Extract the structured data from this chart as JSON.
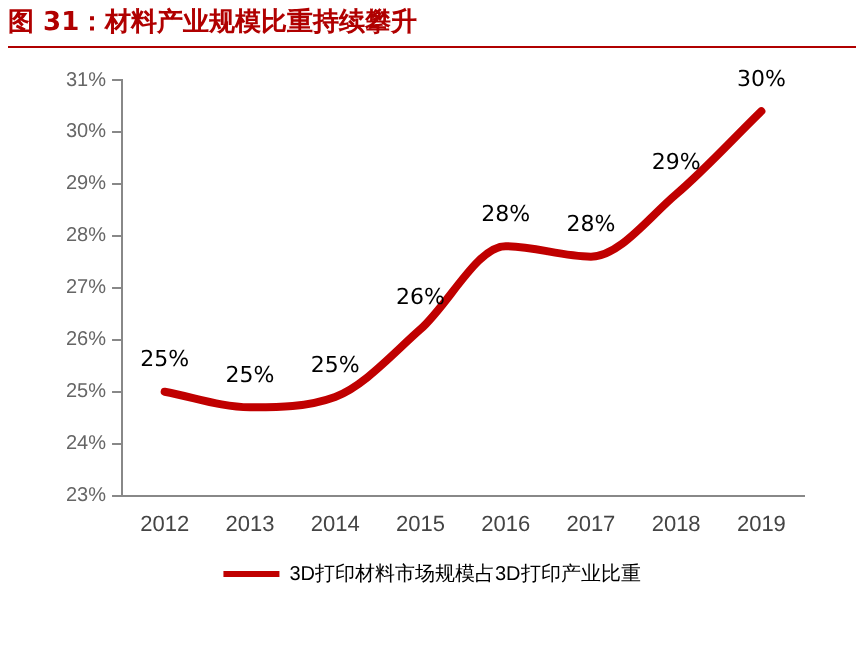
{
  "chart_data": {
    "type": "line",
    "title": "图 31：材料产业规模比重持续攀升",
    "categories": [
      "2012",
      "2013",
      "2014",
      "2015",
      "2016",
      "2017",
      "2018",
      "2019"
    ],
    "series": [
      {
        "name": "3D打印材料市场规模占3D打印产业比重",
        "color": "#c00000",
        "values": [
          25.0,
          24.7,
          24.9,
          26.2,
          27.8,
          27.6,
          28.8,
          30.4
        ],
        "value_labels": [
          "25%",
          "25%",
          "25%",
          "26%",
          "28%",
          "28%",
          "29%",
          "30%"
        ]
      }
    ],
    "ylim": [
      23,
      31
    ],
    "yticks": [
      {
        "value": 23,
        "label": "23%"
      },
      {
        "value": 24,
        "label": "24%"
      },
      {
        "value": 25,
        "label": "25%"
      },
      {
        "value": 26,
        "label": "26%"
      },
      {
        "value": 27,
        "label": "27%"
      },
      {
        "value": 28,
        "label": "28%"
      },
      {
        "value": 29,
        "label": "29%"
      },
      {
        "value": 30,
        "label": "30%"
      },
      {
        "value": 31,
        "label": "31%"
      }
    ],
    "grid": false,
    "legend": "bottom",
    "marker": "none",
    "line_style": "solid"
  }
}
